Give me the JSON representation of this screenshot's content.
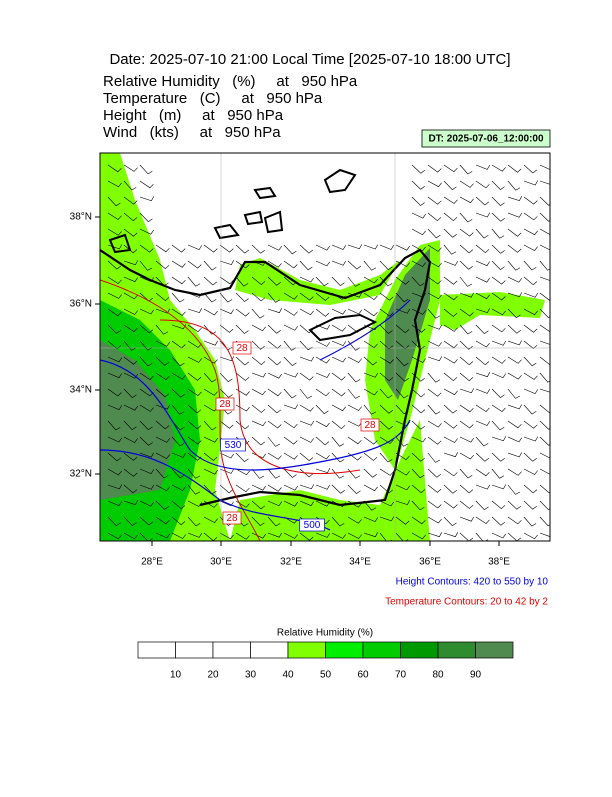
{
  "header": {
    "title": "Date: 2025-07-10  21:00 Local Time [2025-07-10  18:00 UTC]",
    "variables": [
      "Relative Humidity   (%)     at   950 hPa",
      "Temperature   (C)     at   950 hPa",
      "Height   (m)     at   950 hPa",
      "Wind   (kts)     at   950 hPa"
    ],
    "init_time": "DT: 2025-07-06_12:00:00"
  },
  "map": {
    "lat_labels": [
      "38°N",
      "36°N",
      "34°N",
      "32°N"
    ],
    "lon_labels": [
      "28°E",
      "30°E",
      "32°E",
      "34°E",
      "36°E",
      "38°E"
    ],
    "contour_labels": [
      {
        "text": "28",
        "color": "#e00000"
      },
      {
        "text": "28",
        "color": "#e00000"
      },
      {
        "text": "28",
        "color": "#e00000"
      },
      {
        "text": "28",
        "color": "#e00000"
      },
      {
        "text": "530",
        "color": "#0000dd"
      },
      {
        "text": "500",
        "color": "#0000dd"
      }
    ],
    "height_note": "Height Contours: 420 to 550 by 10",
    "temperature_note": "Temperature Contours: 20 to 42 by 2"
  },
  "colorbar": {
    "title": "Relative Humidity  (%)",
    "labels": [
      10,
      20,
      30,
      40,
      50,
      60,
      70,
      80,
      90
    ],
    "colors": [
      "#ffffff",
      "#ffffff",
      "#ffffff",
      "#ffffff",
      "#80ff00",
      "#00ee00",
      "#00cc00",
      "#009900",
      "#2e8b2e",
      "#4f8a4f"
    ]
  }
}
